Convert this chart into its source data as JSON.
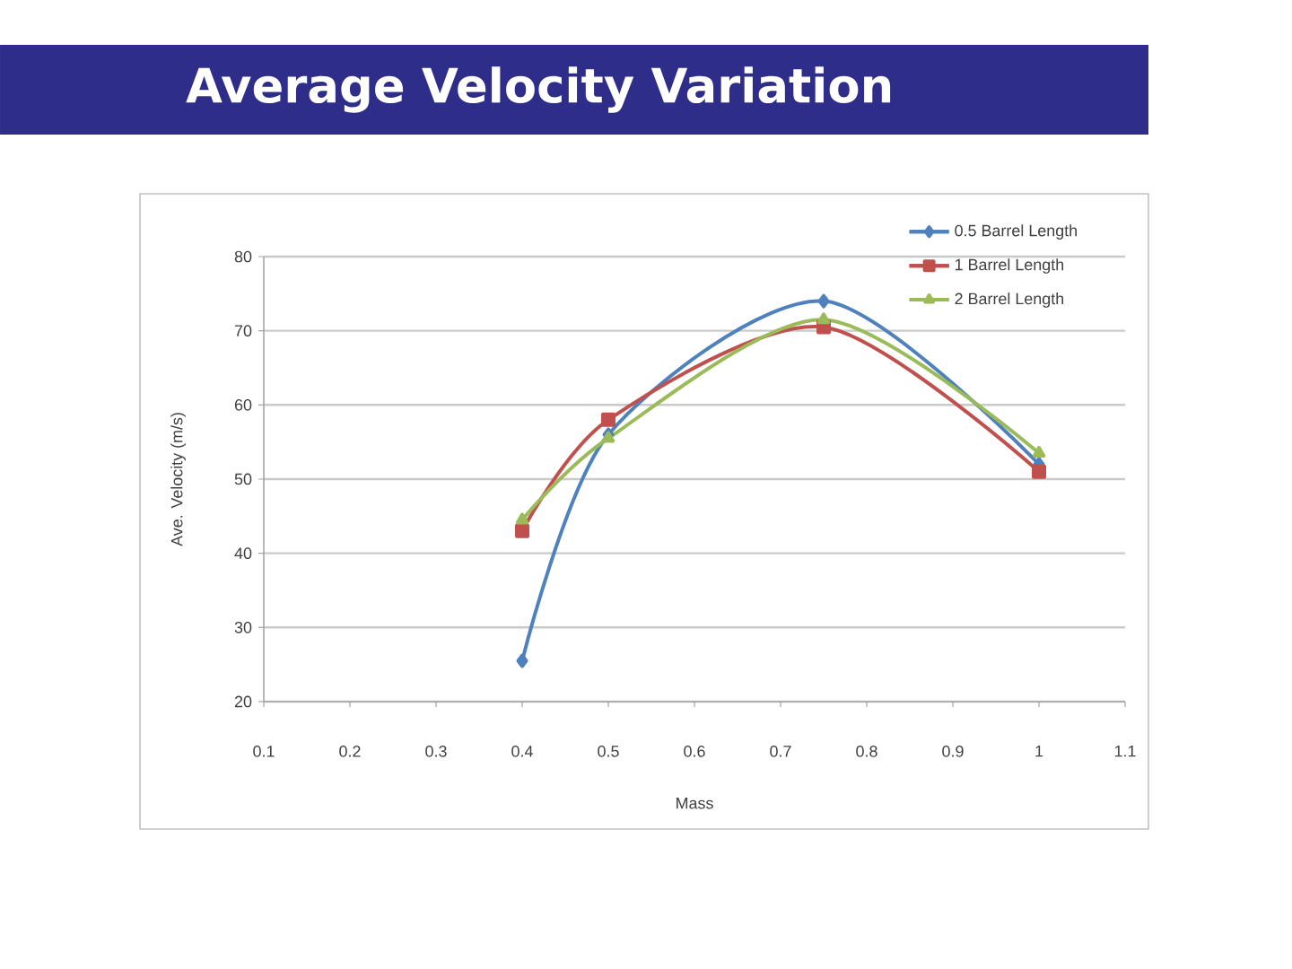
{
  "chart_data": {
    "type": "line",
    "title": "Average Velocity Variation",
    "xlabel": "Mass",
    "ylabel": "Ave. Velocity (m/s)",
    "x": [
      0.4,
      0.5,
      0.75,
      1
    ],
    "series": [
      {
        "name": "0.5 Barrel Length",
        "color": "#4f81bd",
        "marker": "diamond",
        "values": [
          25.5,
          56,
          74,
          52
        ]
      },
      {
        "name": "1 Barrel Length",
        "color": "#c0504d",
        "marker": "square",
        "values": [
          43,
          58,
          70.5,
          51
        ]
      },
      {
        "name": "2 Barrel Length",
        "color": "#9bbb59",
        "marker": "triangle",
        "values": [
          44.5,
          55.5,
          71.5,
          53.5
        ]
      }
    ],
    "xlim": [
      0.1,
      1.1
    ],
    "xticks": [
      0.1,
      0.2,
      0.3,
      0.4,
      0.5,
      0.6,
      0.7,
      0.8,
      0.9,
      1,
      1.1
    ],
    "ylim": [
      20,
      80
    ],
    "yticks": [
      20,
      30,
      40,
      50,
      60,
      70,
      80
    ],
    "grid": "y",
    "legend": "top right"
  }
}
